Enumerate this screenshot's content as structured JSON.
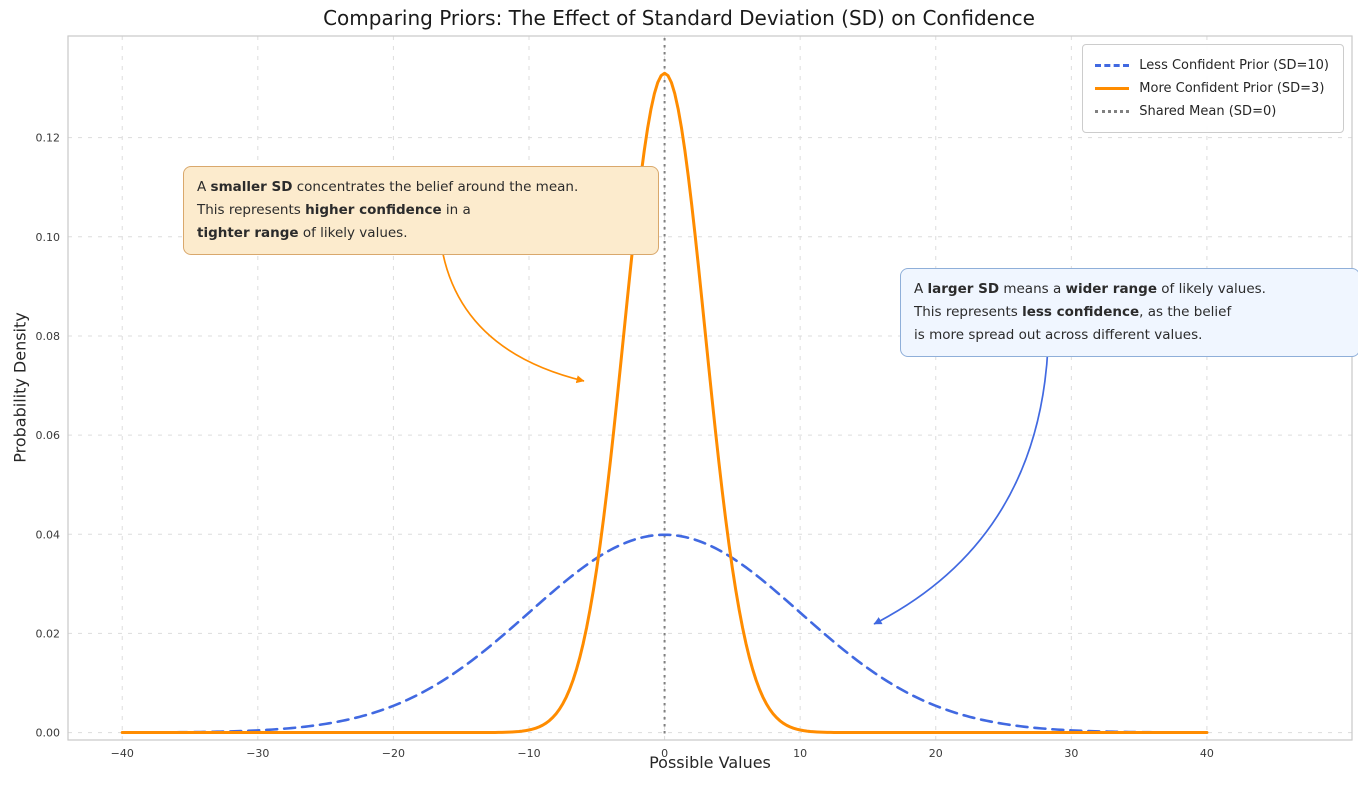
{
  "title": "Comparing Priors: The Effect of Standard Deviation (SD) on Confidence",
  "chart_data": {
    "type": "line",
    "title": "Comparing Priors: The Effect of Standard Deviation (SD) on Confidence",
    "xlabel": "Possible Values",
    "ylabel": "Probability Density",
    "xlim": [
      -44,
      50.7
    ],
    "ylim": [
      -0.0015,
      0.1405
    ],
    "xticks": [
      -40,
      -30,
      -20,
      -10,
      0,
      10,
      20,
      30,
      40
    ],
    "xtick_labels": [
      "−40",
      "−30",
      "−20",
      "−10",
      "0",
      "10",
      "20",
      "30",
      "40"
    ],
    "yticks": [
      0.0,
      0.02,
      0.04,
      0.06,
      0.08,
      0.1,
      0.12
    ],
    "ytick_labels": [
      "0.00",
      "0.02",
      "0.04",
      "0.06",
      "0.08",
      "0.10",
      "0.12"
    ],
    "grid": true,
    "grid_color": "#d9d9d9",
    "frame_color": "#c9c9c9",
    "legend_position": "upper right",
    "series": [
      {
        "name": "Less Confident Prior (SD=10)",
        "dist": "normal",
        "mean": 0,
        "sd": 10,
        "x_range": [
          -40,
          40
        ],
        "peak_density": 0.0399,
        "color": "#4169E1",
        "style": "dashed",
        "width": 2.6
      },
      {
        "name": "More Confident Prior (SD=3)",
        "dist": "normal",
        "mean": 0,
        "sd": 3,
        "x_range": [
          -40,
          40
        ],
        "peak_density": 0.133,
        "color": "#FF8C00",
        "style": "solid",
        "width": 3
      }
    ],
    "vline": {
      "name": "Shared Mean (SD=0)",
      "x": 0,
      "color": "#808080",
      "style": "dotted",
      "width": 2
    }
  },
  "legend": {
    "items": [
      {
        "label": "Less Confident Prior (SD=10)",
        "color": "#4169E1",
        "style": "dashed"
      },
      {
        "label": "More Confident Prior (SD=3)",
        "color": "#FF8C00",
        "style": "solid"
      },
      {
        "label": "Shared Mean (SD=0)",
        "color": "#808080",
        "style": "dotted"
      }
    ]
  },
  "annotations": [
    {
      "id": "smaller-sd-note",
      "bg": "#fcebcd",
      "border": "#d9a86c",
      "arrow_color": "#FF8C00",
      "lines": [
        [
          {
            "text": "A ",
            "bold": false
          },
          {
            "text": "smaller SD",
            "bold": true
          },
          {
            "text": " concentrates the belief around the mean.",
            "bold": false
          }
        ],
        [
          {
            "text": "This represents ",
            "bold": false
          },
          {
            "text": "higher confidence",
            "bold": true
          },
          {
            "text": " in a",
            "bold": false
          }
        ],
        [
          {
            "text": "tighter range",
            "bold": true
          },
          {
            "text": " of likely values.",
            "bold": false
          }
        ]
      ]
    },
    {
      "id": "larger-sd-note",
      "bg": "#f0f6ff",
      "border": "#8fafd9",
      "arrow_color": "#4169E1",
      "lines": [
        [
          {
            "text": "A ",
            "bold": false
          },
          {
            "text": "larger SD",
            "bold": true
          },
          {
            "text": " means a ",
            "bold": false
          },
          {
            "text": "wider range",
            "bold": true
          },
          {
            "text": " of likely values.",
            "bold": false
          }
        ],
        [
          {
            "text": "This represents ",
            "bold": false
          },
          {
            "text": "less confidence",
            "bold": true
          },
          {
            "text": ", as the belief",
            "bold": false
          }
        ],
        [
          {
            "text": "is more spread out across different values.",
            "bold": false
          }
        ]
      ]
    }
  ]
}
